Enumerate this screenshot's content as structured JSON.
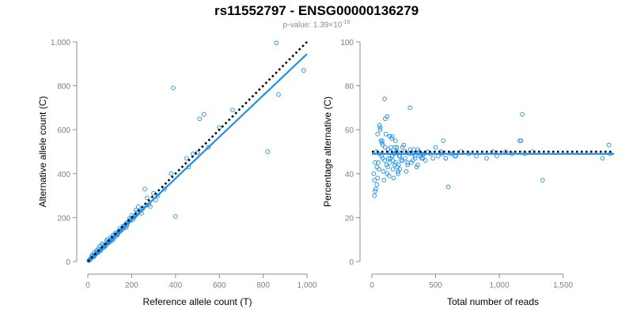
{
  "header": {
    "title": "rs11552797 - ENSG00000136279",
    "pvalue_prefix": "p-value: 1.39×10",
    "pvalue_exp": "-16"
  },
  "colors": {
    "points": "#1f8fe8",
    "fit_line": "#1f8fe8",
    "reference_line": "#000000",
    "axis": "#8c8c8c",
    "tick_label": "#7f7f7f"
  },
  "chart_data": [
    {
      "type": "scatter",
      "title": "",
      "xlabel": "Reference allele count (T)",
      "ylabel": "Alternative allele count (C)",
      "xlim": [
        0,
        1000
      ],
      "ylim": [
        0,
        1000
      ],
      "xticks": [
        0,
        200,
        400,
        600,
        800,
        1000
      ],
      "xtick_labels": [
        "0",
        "200",
        "400",
        "600",
        "800",
        "1,000"
      ],
      "yticks": [
        0,
        200,
        400,
        600,
        800,
        1000
      ],
      "ytick_labels": [
        "0",
        "200",
        "400",
        "600",
        "800",
        "1,000"
      ],
      "grid": false,
      "fit_line": {
        "x": [
          0,
          1000
        ],
        "y": [
          0,
          945
        ]
      },
      "reference_line": {
        "x": [
          0,
          1000
        ],
        "y": [
          0,
          1000
        ],
        "style": "dotted"
      },
      "points": {
        "x": [
          860,
          390,
          530,
          510,
          660,
          600,
          985,
          870,
          820,
          400,
          480,
          460,
          500,
          550,
          450,
          380,
          270,
          260,
          280,
          300,
          250,
          310,
          240,
          230,
          220,
          210,
          200,
          190,
          180,
          170,
          160,
          150,
          140,
          130,
          120,
          110,
          100,
          90,
          80,
          70,
          60,
          55,
          50,
          45,
          40,
          35,
          30,
          25,
          20,
          15,
          12,
          10,
          8,
          5,
          65,
          85,
          95,
          105,
          115,
          125,
          135,
          145,
          155,
          165,
          175,
          185,
          195,
          205,
          215,
          225,
          20,
          30,
          40,
          50,
          60,
          70,
          80,
          90,
          100,
          110,
          40,
          55,
          75,
          95,
          115,
          135,
          145,
          160,
          175,
          190,
          205,
          225,
          245,
          265,
          285,
          320,
          350,
          18,
          28,
          38,
          48,
          58,
          68,
          78,
          88,
          98,
          108,
          118,
          128,
          138,
          148,
          158,
          168,
          178
        ],
        "y": [
          995,
          790,
          670,
          650,
          690,
          610,
          870,
          760,
          500,
          205,
          490,
          430,
          495,
          520,
          470,
          400,
          290,
          330,
          260,
          310,
          240,
          280,
          230,
          250,
          235,
          200,
          210,
          195,
          170,
          165,
          160,
          140,
          135,
          125,
          115,
          105,
          95,
          85,
          75,
          65,
          55,
          50,
          45,
          40,
          38,
          32,
          28,
          22,
          18,
          15,
          12,
          9,
          7,
          4,
          80,
          95,
          90,
          110,
          120,
          130,
          125,
          140,
          145,
          160,
          175,
          180,
          190,
          200,
          205,
          215,
          30,
          40,
          45,
          60,
          55,
          75,
          70,
          100,
          90,
          95,
          50,
          70,
          65,
          85,
          100,
          120,
          150,
          150,
          155,
          185,
          190,
          225,
          220,
          255,
          250,
          300,
          330,
          25,
          22,
          35,
          42,
          50,
          62,
          72,
          80,
          88,
          102,
          108,
          115,
          128,
          138,
          148,
          155,
          165
        ]
      }
    },
    {
      "type": "scatter",
      "title": "",
      "xlabel": "Total number of reads",
      "ylabel": "Percentage alternative (C)",
      "xlim": [
        0,
        1900
      ],
      "ylim": [
        0,
        100
      ],
      "xticks": [
        0,
        500,
        1000,
        1500
      ],
      "xtick_labels": [
        "0",
        "500",
        "1,000",
        "1,500"
      ],
      "yticks": [
        0,
        20,
        40,
        60,
        80,
        100
      ],
      "ytick_labels": [
        "0",
        "20",
        "40",
        "60",
        "80",
        "100"
      ],
      "grid": false,
      "fit_line": {
        "x": [
          0,
          1900
        ],
        "y": [
          49,
          49
        ]
      },
      "reference_line": {
        "x": [
          0,
          1900
        ],
        "y": [
          50,
          50
        ],
        "style": "dotted"
      },
      "points": {
        "x": [
          1860,
          1870,
          1810,
          1340,
          1180,
          1170,
          1200,
          1260,
          1100,
          1050,
          980,
          950,
          900,
          820,
          760,
          700,
          650,
          620,
          600,
          580,
          560,
          550,
          540,
          520,
          500,
          480,
          460,
          440,
          420,
          400,
          380,
          360,
          340,
          320,
          300,
          280,
          260,
          240,
          220,
          200,
          180,
          160,
          140,
          120,
          100,
          80,
          60,
          40,
          20,
          15,
          25,
          35,
          45,
          55,
          65,
          75,
          85,
          95,
          105,
          115,
          125,
          135,
          145,
          155,
          165,
          175,
          185,
          195,
          205,
          215,
          30,
          50,
          70,
          90,
          110,
          130,
          150,
          170,
          190,
          210,
          230,
          250,
          270,
          290,
          310,
          330,
          350,
          370,
          390,
          410,
          20,
          40,
          60,
          80,
          100,
          120,
          140,
          160,
          180,
          200,
          220,
          240,
          260,
          280,
          300,
          320,
          340,
          360,
          380,
          400,
          25,
          45,
          65,
          85,
          105,
          125,
          145,
          165,
          185,
          205,
          580,
          660,
          1160
        ],
        "y": [
          53,
          49,
          47,
          37,
          67,
          55,
          49,
          50,
          49,
          50,
          48,
          50,
          47,
          48,
          49,
          50,
          48,
          49,
          34,
          47,
          55,
          49,
          50,
          48,
          52,
          47,
          49,
          50,
          46,
          49,
          48,
          51,
          47,
          49,
          70,
          44,
          50,
          46,
          48,
          43,
          52,
          57,
          45,
          66,
          74,
          55,
          62,
          35,
          30,
          40,
          45,
          50,
          58,
          42,
          60,
          48,
          53,
          37,
          65,
          44,
          51,
          39,
          47,
          56,
          42,
          49,
          45,
          52,
          40,
          48,
          33,
          45,
          55,
          41,
          58,
          47,
          52,
          38,
          50,
          44,
          46,
          53,
          41,
          49,
          45,
          51,
          43,
          50,
          47,
          49,
          37,
          43,
          49,
          54,
          46,
          40,
          57,
          48,
          44,
          50,
          42,
          52,
          47,
          45,
          51,
          46,
          48,
          44,
          49,
          47,
          32,
          38,
          61,
          47,
          52,
          43,
          50,
          46,
          55,
          41,
          47,
          48,
          55
        ]
      }
    }
  ]
}
